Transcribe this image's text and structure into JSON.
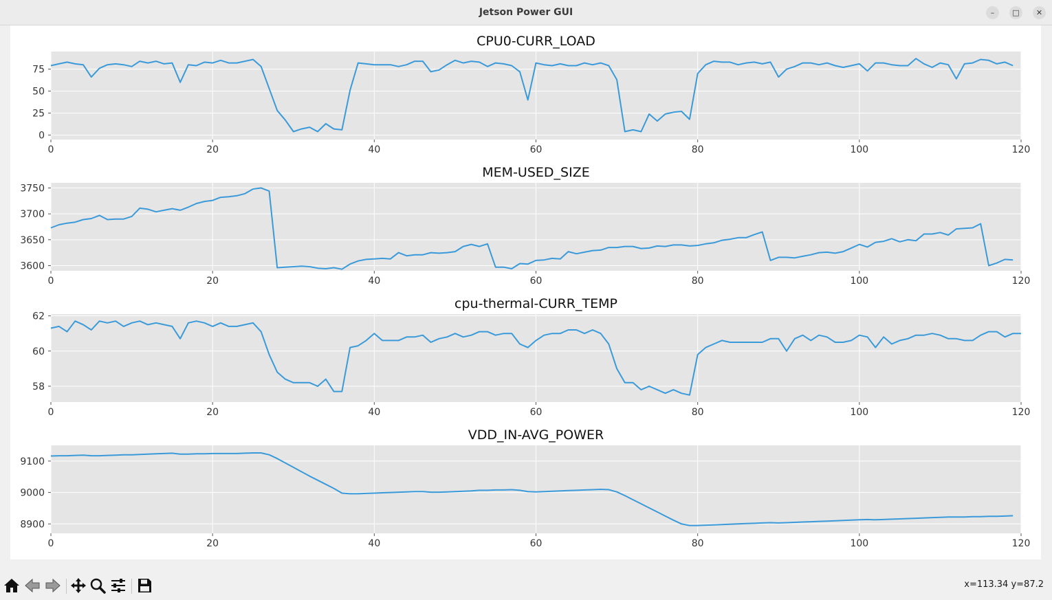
{
  "window": {
    "title": "Jetson Power GUI",
    "controls": [
      "minimize-icon",
      "maximize-icon",
      "close-icon"
    ]
  },
  "toolbar": {
    "buttons": [
      "home-icon",
      "back-icon",
      "forward-icon",
      "pan-icon",
      "zoom-icon",
      "configure-subplots-icon",
      "save-icon"
    ],
    "coordinates_text": "x=113.34 y=87.2"
  },
  "colors": {
    "line": "#3a9ad9",
    "plot_background": "#e5e5e5",
    "grid": "#ffffff",
    "figure_background": "#ffffff",
    "window_background": "#f0f0f0"
  },
  "chart_data": [
    {
      "type": "line",
      "title": "CPU0-CURR_LOAD",
      "xlim": [
        0,
        120
      ],
      "ylim": [
        -5,
        95
      ],
      "xticks": [
        0,
        20,
        40,
        60,
        80,
        100,
        120
      ],
      "yticks": [
        0,
        25,
        50,
        75
      ],
      "grid": true,
      "x_start": 0,
      "values": [
        79,
        81,
        83,
        81,
        80,
        66,
        76,
        80,
        81,
        80,
        78,
        84,
        82,
        84,
        81,
        82,
        60,
        80,
        79,
        83,
        82,
        85,
        82,
        82,
        84,
        86,
        78,
        53,
        28,
        17,
        4,
        7,
        9,
        4,
        13,
        7,
        6,
        51,
        82,
        81,
        80,
        80,
        80,
        78,
        80,
        84,
        84,
        72,
        74,
        80,
        85,
        82,
        84,
        83,
        78,
        82,
        81,
        79,
        72,
        40,
        82,
        80,
        79,
        81,
        79,
        79,
        82,
        80,
        82,
        79,
        63,
        4,
        6,
        4,
        24,
        16,
        24,
        26,
        27,
        18,
        70,
        80,
        84,
        83,
        83,
        80,
        82,
        83,
        81,
        83,
        66,
        75,
        78,
        82,
        82,
        80,
        82,
        79,
        77,
        79,
        81,
        73,
        82,
        82,
        80,
        79,
        79,
        87,
        81,
        77,
        82,
        80,
        64,
        81,
        82,
        86,
        85,
        81,
        83,
        79
      ]
    },
    {
      "type": "line",
      "title": "MEM-USED_SIZE",
      "xlim": [
        0,
        120
      ],
      "ylim": [
        3590,
        3760
      ],
      "xticks": [
        0,
        20,
        40,
        60,
        80,
        100,
        120
      ],
      "yticks": [
        3600,
        3650,
        3700,
        3750
      ],
      "grid": true,
      "x_start": 0,
      "values": [
        3673,
        3679,
        3682,
        3684,
        3689,
        3691,
        3697,
        3689,
        3690,
        3690,
        3695,
        3711,
        3709,
        3704,
        3707,
        3710,
        3707,
        3713,
        3720,
        3724,
        3726,
        3732,
        3733,
        3735,
        3739,
        3748,
        3750,
        3744,
        3596,
        3597,
        3598,
        3599,
        3598,
        3595,
        3594,
        3596,
        3593,
        3603,
        3609,
        3612,
        3613,
        3614,
        3613,
        3625,
        3619,
        3621,
        3621,
        3625,
        3624,
        3625,
        3627,
        3637,
        3641,
        3637,
        3642,
        3597,
        3597,
        3594,
        3604,
        3603,
        3610,
        3611,
        3614,
        3613,
        3627,
        3623,
        3626,
        3629,
        3630,
        3635,
        3635,
        3637,
        3637,
        3633,
        3634,
        3638,
        3637,
        3640,
        3640,
        3638,
        3639,
        3642,
        3644,
        3649,
        3651,
        3654,
        3654,
        3660,
        3665,
        3610,
        3616,
        3616,
        3615,
        3618,
        3621,
        3625,
        3626,
        3624,
        3627,
        3634,
        3641,
        3636,
        3645,
        3647,
        3652,
        3646,
        3650,
        3648,
        3661,
        3661,
        3664,
        3659,
        3671,
        3672,
        3673,
        3681,
        3600,
        3605,
        3612,
        3611
      ]
    },
    {
      "type": "line",
      "title": "cpu-thermal-CURR_TEMP",
      "xlim": [
        0,
        120
      ],
      "ylim": [
        57.1,
        62.1
      ],
      "xticks": [
        0,
        20,
        40,
        60,
        80,
        100,
        120
      ],
      "yticks": [
        58,
        60,
        62
      ],
      "grid": true,
      "x_start": 0,
      "values": [
        61.3,
        61.4,
        61.1,
        61.7,
        61.5,
        61.2,
        61.7,
        61.6,
        61.7,
        61.4,
        61.6,
        61.7,
        61.5,
        61.6,
        61.5,
        61.4,
        60.7,
        61.6,
        61.7,
        61.6,
        61.4,
        61.6,
        61.4,
        61.4,
        61.5,
        61.6,
        61.1,
        59.8,
        58.8,
        58.4,
        58.2,
        58.2,
        58.2,
        58.0,
        58.4,
        57.7,
        57.7,
        60.2,
        60.3,
        60.6,
        61.0,
        60.6,
        60.6,
        60.6,
        60.8,
        60.8,
        60.9,
        60.5,
        60.7,
        60.8,
        61.0,
        60.8,
        60.9,
        61.1,
        61.1,
        60.9,
        61.0,
        61.0,
        60.4,
        60.2,
        60.6,
        60.9,
        61.0,
        61.0,
        61.2,
        61.2,
        61.0,
        61.2,
        61.0,
        60.4,
        59.0,
        58.2,
        58.2,
        57.8,
        58.0,
        57.8,
        57.6,
        57.8,
        57.6,
        57.5,
        59.8,
        60.2,
        60.4,
        60.6,
        60.5,
        60.5,
        60.5,
        60.5,
        60.5,
        60.7,
        60.7,
        60.0,
        60.7,
        60.9,
        60.6,
        60.9,
        60.8,
        60.5,
        60.5,
        60.6,
        60.9,
        60.8,
        60.2,
        60.8,
        60.4,
        60.6,
        60.7,
        60.9,
        60.9,
        61.0,
        60.9,
        60.7,
        60.7,
        60.6,
        60.6,
        60.9,
        61.1,
        61.1,
        60.8,
        61.0,
        61.0
      ]
    },
    {
      "type": "line",
      "title": "VDD_IN-AVG_POWER",
      "xlim": [
        0,
        120
      ],
      "ylim": [
        8870,
        9150
      ],
      "xticks": [
        0,
        20,
        40,
        60,
        80,
        100,
        120
      ],
      "yticks": [
        8900,
        9000,
        9100
      ],
      "grid": true,
      "x_start": 0,
      "values": [
        9116,
        9117,
        9117,
        9118,
        9119,
        9117,
        9117,
        9118,
        9119,
        9120,
        9120,
        9121,
        9122,
        9123,
        9124,
        9125,
        9122,
        9122,
        9123,
        9123,
        9124,
        9124,
        9124,
        9124,
        9125,
        9126,
        9126,
        9120,
        9108,
        9094,
        9080,
        9066,
        9052,
        9039,
        9026,
        9013,
        8998,
        8996,
        8996,
        8997,
        8998,
        8999,
        9000,
        9001,
        9002,
        9003,
        9003,
        9001,
        9001,
        9002,
        9003,
        9004,
        9005,
        9007,
        9007,
        9008,
        9008,
        9009,
        9007,
        9003,
        9002,
        9003,
        9004,
        9005,
        9006,
        9007,
        9008,
        9009,
        9010,
        9009,
        9002,
        8990,
        8977,
        8964,
        8951,
        8938,
        8925,
        8912,
        8900,
        8895,
        8895,
        8896,
        8897,
        8898,
        8899,
        8900,
        8901,
        8902,
        8903,
        8904,
        8903,
        8904,
        8905,
        8906,
        8907,
        8908,
        8909,
        8910,
        8911,
        8912,
        8913,
        8914,
        8913,
        8914,
        8915,
        8916,
        8917,
        8918,
        8919,
        8920,
        8921,
        8922,
        8922,
        8922,
        8923,
        8923,
        8924,
        8924,
        8925,
        8926
      ]
    }
  ]
}
